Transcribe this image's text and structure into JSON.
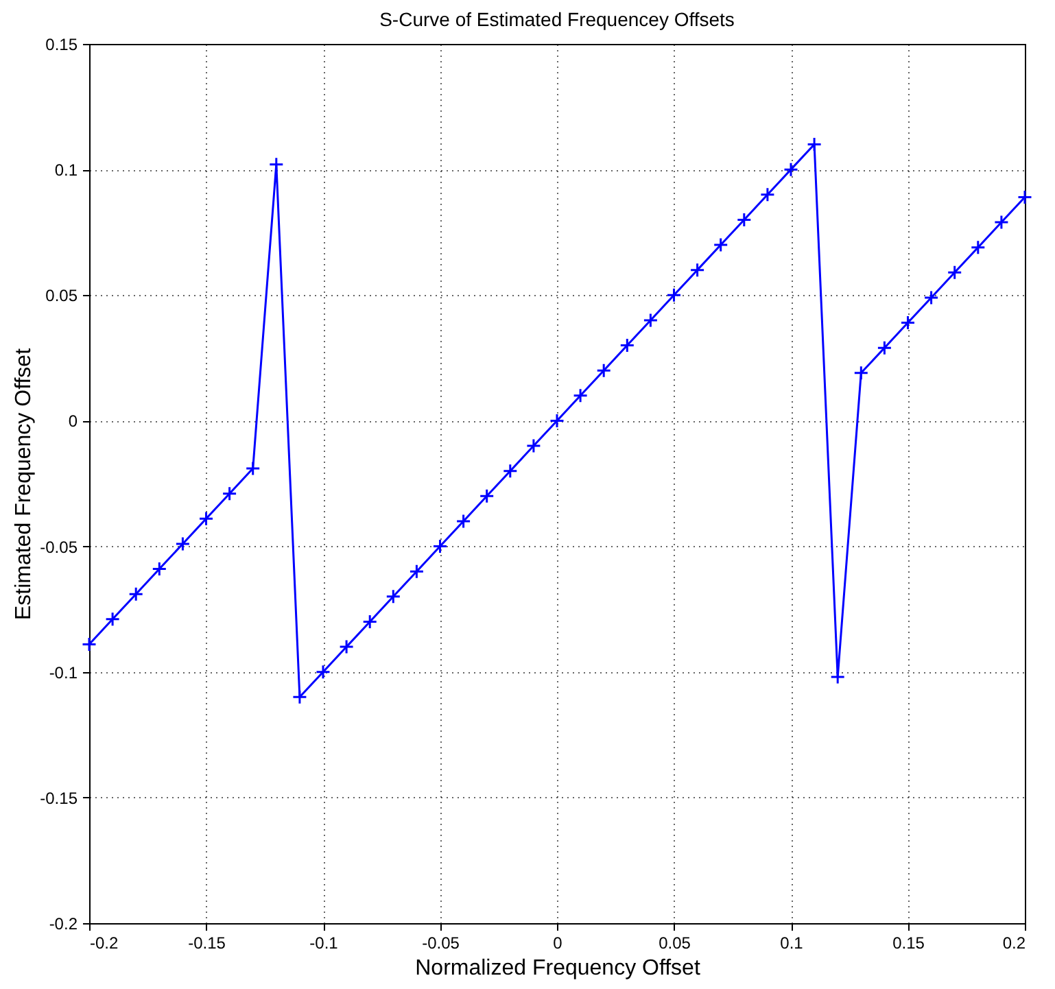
{
  "chart_data": {
    "type": "line",
    "title": "S-Curve of Estimated Frequencey Offsets",
    "xlabel": "Normalized Frequency Offset",
    "ylabel": "Estimated Frequency Offset",
    "x": [
      -0.2,
      -0.19,
      -0.18,
      -0.17,
      -0.16,
      -0.15,
      -0.14,
      -0.13,
      -0.12,
      -0.11,
      -0.1,
      -0.09,
      -0.08,
      -0.07,
      -0.06,
      -0.05,
      -0.04,
      -0.03,
      -0.02,
      -0.01,
      0,
      0.01,
      0.02,
      0.03,
      0.04,
      0.05,
      0.06,
      0.07,
      0.08,
      0.09,
      0.1,
      0.11,
      0.12,
      0.13,
      0.14,
      0.15,
      0.16,
      0.17,
      0.18,
      0.19,
      0.2
    ],
    "series": [
      {
        "color": "#0000ff",
        "values": [
          -0.089,
          -0.079,
          -0.069,
          -0.059,
          -0.049,
          -0.039,
          -0.029,
          -0.019,
          0.102,
          -0.11,
          -0.1,
          -0.09,
          -0.08,
          -0.07,
          -0.06,
          -0.05,
          -0.04,
          -0.03,
          -0.02,
          -0.01,
          0,
          0.01,
          0.02,
          0.03,
          0.04,
          0.05,
          0.06,
          0.07,
          0.08,
          0.09,
          0.1,
          0.11,
          -0.102,
          0.019,
          0.029,
          0.039,
          0.049,
          0.059,
          0.069,
          0.079,
          0.089
        ]
      }
    ],
    "xlim": [
      -0.2,
      0.2
    ],
    "xticks": [
      -0.2,
      -0.15,
      -0.1,
      -0.05,
      0,
      0.05,
      0.1,
      0.15,
      0.2
    ],
    "ylim": [
      -0.2,
      0.15
    ],
    "yticks": [
      -0.2,
      -0.15,
      -0.1,
      -0.05,
      0,
      0.05,
      0.1,
      0.15
    ],
    "grid": true,
    "marker": "cross",
    "line_style": "solid",
    "legend": false
  }
}
